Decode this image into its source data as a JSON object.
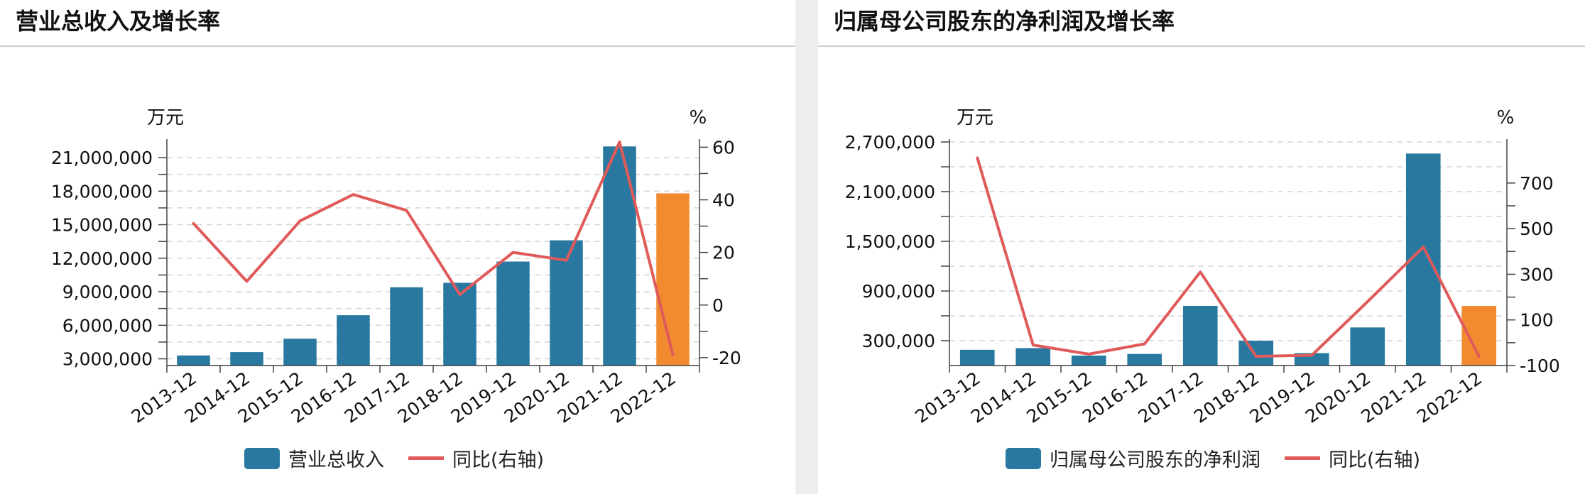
{
  "colors": {
    "bar": "#2878a0",
    "bar_latest": "#f28a30",
    "line": "#e05a5a",
    "grid": "#d5d5d5",
    "axis": "#444444"
  },
  "panels": [
    {
      "title": "营业总收入及增长率",
      "legend": {
        "bar_label": "营业总收入",
        "line_label": "同比(右轴)"
      }
    },
    {
      "title": "归属母公司股东的净利润及增长率",
      "legend": {
        "bar_label": "归属母公司股东的净利润",
        "line_label": "同比(右轴)"
      }
    }
  ],
  "chart_data": [
    {
      "type": "bar+line",
      "title": "营业总收入及增长率",
      "categories": [
        "2013-12",
        "2014-12",
        "2015-12",
        "2016-12",
        "2017-12",
        "2018-12",
        "2019-12",
        "2020-12",
        "2021-12",
        "2022-12"
      ],
      "left_axis": {
        "unit": "万元",
        "ticks": [
          3000000,
          6000000,
          9000000,
          12000000,
          15000000,
          18000000,
          21000000
        ],
        "tick_labels": [
          "3,000,000",
          "6,000,000",
          "9,000,000",
          "12,000,000",
          "15,000,000",
          "18,000,000",
          "21,000,000"
        ],
        "ylim": [
          2400000,
          22400000
        ]
      },
      "right_axis": {
        "unit": "%",
        "ticks": [
          -20,
          0,
          20,
          40,
          60
        ],
        "tick_labels": [
          "-20",
          "0",
          "20",
          "40",
          "60"
        ],
        "ylim": [
          -23,
          62
        ]
      },
      "series": [
        {
          "name": "营业总收入",
          "type": "bar",
          "axis": "left",
          "values": [
            3300000,
            3600000,
            4800000,
            6900000,
            9400000,
            9800000,
            11700000,
            13600000,
            22000000,
            17800000
          ]
        },
        {
          "name": "同比(右轴)",
          "type": "line",
          "axis": "right",
          "values": [
            31,
            9,
            32,
            42,
            36,
            4,
            20,
            17,
            62,
            -19
          ]
        }
      ],
      "highlight_last_bar": true,
      "grid": true
    },
    {
      "type": "bar+line",
      "title": "归属母公司股东的净利润及增长率",
      "categories": [
        "2013-12",
        "2014-12",
        "2015-12",
        "2016-12",
        "2017-12",
        "2018-12",
        "2019-12",
        "2020-12",
        "2021-12",
        "2022-12"
      ],
      "left_axis": {
        "unit": "万元",
        "ticks": [
          300000,
          900000,
          1500000,
          2100000,
          2700000
        ],
        "tick_labels": [
          "300,000",
          "900,000",
          "1,500,000",
          "2,100,000",
          "2,700,000"
        ],
        "ylim": [
          0,
          2700000
        ]
      },
      "right_axis": {
        "unit": "%",
        "ticks": [
          -100,
          100,
          300,
          500,
          700
        ],
        "tick_labels": [
          "-100",
          "100",
          "300",
          "500",
          "700"
        ],
        "ylim": [
          -100,
          880
        ]
      },
      "series": [
        {
          "name": "归属母公司股东的净利润",
          "type": "bar",
          "axis": "left",
          "values": [
            190000,
            210000,
            120000,
            140000,
            720000,
            300000,
            150000,
            460000,
            2560000,
            720000
          ]
        },
        {
          "name": "同比(右轴)",
          "type": "line",
          "axis": "right",
          "values": [
            810,
            -10,
            -50,
            -5,
            310,
            -60,
            -55,
            180,
            420,
            -60
          ]
        }
      ],
      "highlight_last_bar": true,
      "grid": true
    }
  ]
}
